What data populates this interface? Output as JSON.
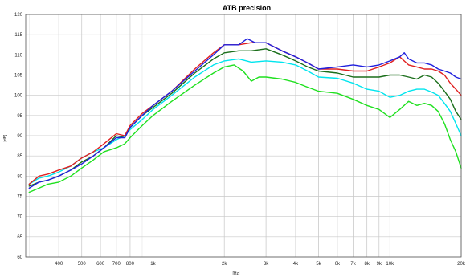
{
  "chart_data": {
    "type": "line",
    "title": "ATB precision",
    "xlabel": "[Hz]",
    "ylabel": "[dB]",
    "x_scale": "log",
    "xlim": [
      290,
      20000
    ],
    "ylim": [
      60,
      120
    ],
    "grid": true,
    "legend": "none",
    "x_ticks": [
      {
        "value": 400,
        "label": "400"
      },
      {
        "value": 500,
        "label": "500"
      },
      {
        "value": 600,
        "label": "600"
      },
      {
        "value": 700,
        "label": "700"
      },
      {
        "value": 800,
        "label": "800"
      },
      {
        "value": 1000,
        "label": "1k"
      },
      {
        "value": 2000,
        "label": "2k"
      },
      {
        "value": 3000,
        "label": "3k"
      },
      {
        "value": 4000,
        "label": "4k"
      },
      {
        "value": 5000,
        "label": "5k"
      },
      {
        "value": 6000,
        "label": "6k"
      },
      {
        "value": 7000,
        "label": "7k"
      },
      {
        "value": 8000,
        "label": "8k"
      },
      {
        "value": 9000,
        "label": "9k"
      },
      {
        "value": 10000,
        "label": "10k"
      },
      {
        "value": 20000,
        "label": "20k"
      }
    ],
    "y_ticks": [
      60,
      65,
      70,
      75,
      80,
      85,
      90,
      95,
      100,
      105,
      110,
      115,
      120
    ],
    "series": [
      {
        "color": "#00e5ee",
        "x": [
          300,
          330,
          360,
          400,
          450,
          500,
          560,
          620,
          700,
          760,
          800,
          900,
          1000,
          1200,
          1500,
          1800,
          2000,
          2300,
          2600,
          3000,
          3500,
          4000,
          4500,
          5000,
          6000,
          7000,
          8000,
          9000,
          10000,
          11000,
          12000,
          13000,
          14000,
          15000,
          16000,
          17000,
          18000,
          19000,
          20000
        ],
        "y": [
          78,
          79.5,
          80,
          81,
          82.5,
          84.5,
          86,
          87,
          89,
          90,
          91.5,
          94,
          96.5,
          100,
          104.5,
          107.5,
          108.5,
          109,
          108.2,
          108.5,
          108.2,
          107.5,
          106,
          104.5,
          104.2,
          103,
          101.5,
          101,
          99.5,
          100,
          101,
          101.5,
          101.5,
          100.8,
          100,
          98,
          96,
          93,
          90
        ]
      },
      {
        "color": "#1fe01f",
        "x": [
          300,
          330,
          360,
          400,
          450,
          500,
          560,
          620,
          700,
          760,
          800,
          900,
          1000,
          1200,
          1500,
          1800,
          2000,
          2200,
          2400,
          2600,
          2800,
          3000,
          3500,
          4000,
          4500,
          5000,
          6000,
          7000,
          8000,
          9000,
          10000,
          11000,
          12000,
          13000,
          14000,
          15000,
          16000,
          17000,
          18000,
          19000,
          20000
        ],
        "y": [
          76,
          77,
          78,
          78.5,
          80,
          82,
          84,
          86,
          87,
          88,
          89.5,
          92.5,
          95,
          98.5,
          102.5,
          105.5,
          107,
          107.5,
          106,
          103.5,
          104.5,
          104.5,
          104,
          103.2,
          102,
          101,
          100.5,
          99,
          97.5,
          96.5,
          94.5,
          96.5,
          98.5,
          97.5,
          98,
          97.5,
          96,
          93,
          89,
          86,
          82
        ]
      },
      {
        "color": "#1a6e1a",
        "x": [
          300,
          330,
          360,
          400,
          450,
          500,
          560,
          620,
          700,
          760,
          800,
          900,
          1000,
          1200,
          1500,
          1800,
          2000,
          2300,
          2600,
          3000,
          3500,
          4000,
          4500,
          5000,
          6000,
          7000,
          8000,
          9000,
          10000,
          11000,
          12000,
          13000,
          14000,
          15000,
          16000,
          17000,
          18000,
          19000,
          20000
        ],
        "y": [
          77.5,
          78.5,
          79,
          80,
          81.5,
          83.5,
          85,
          87,
          90,
          89.5,
          92,
          95,
          97,
          100.5,
          105.5,
          109,
          110.5,
          111,
          111,
          111.5,
          110,
          108.5,
          107,
          106,
          105.5,
          104.5,
          104.5,
          104.5,
          105,
          105,
          104.5,
          104,
          105,
          104.5,
          103,
          101,
          99,
          96,
          94
        ]
      },
      {
        "color": "#e02020",
        "x": [
          300,
          330,
          360,
          400,
          450,
          500,
          560,
          620,
          700,
          760,
          800,
          900,
          1000,
          1200,
          1500,
          1800,
          2000,
          2300,
          2600,
          3000,
          3500,
          4000,
          4500,
          5000,
          6000,
          7000,
          8000,
          9000,
          10000,
          11000,
          12000,
          13000,
          14000,
          15000,
          16000,
          17000,
          18000,
          19000,
          20000
        ],
        "y": [
          78,
          80,
          80.5,
          81.5,
          82.5,
          84.5,
          86,
          88,
          90.5,
          90,
          92.5,
          95.5,
          97.5,
          101,
          106.5,
          110.5,
          112.5,
          112.5,
          113,
          113,
          111,
          109.5,
          108,
          106.5,
          106.5,
          106,
          106,
          107,
          108,
          109.5,
          107.5,
          107,
          106.5,
          106.5,
          106,
          105,
          103,
          101.5,
          100
        ]
      },
      {
        "color": "#2020dd",
        "x": [
          300,
          330,
          360,
          400,
          450,
          500,
          560,
          620,
          700,
          760,
          800,
          900,
          1000,
          1200,
          1500,
          1800,
          2000,
          2300,
          2500,
          2700,
          3000,
          3500,
          4000,
          4500,
          5000,
          6000,
          7000,
          8000,
          9000,
          10000,
          11000,
          11500,
          12000,
          13000,
          14000,
          15000,
          16000,
          17000,
          18000,
          19000,
          20000
        ],
        "y": [
          77,
          78.5,
          79,
          80,
          81.5,
          83,
          85,
          87,
          89.5,
          89.5,
          92,
          95,
          97.5,
          101,
          106,
          110,
          112.5,
          112.5,
          114,
          113,
          113,
          111,
          109.5,
          108,
          106.5,
          107,
          107.5,
          107,
          107.5,
          108.5,
          109.5,
          110.5,
          109,
          108,
          108,
          107.5,
          106.5,
          106,
          105.5,
          104.5,
          104
        ]
      }
    ]
  }
}
